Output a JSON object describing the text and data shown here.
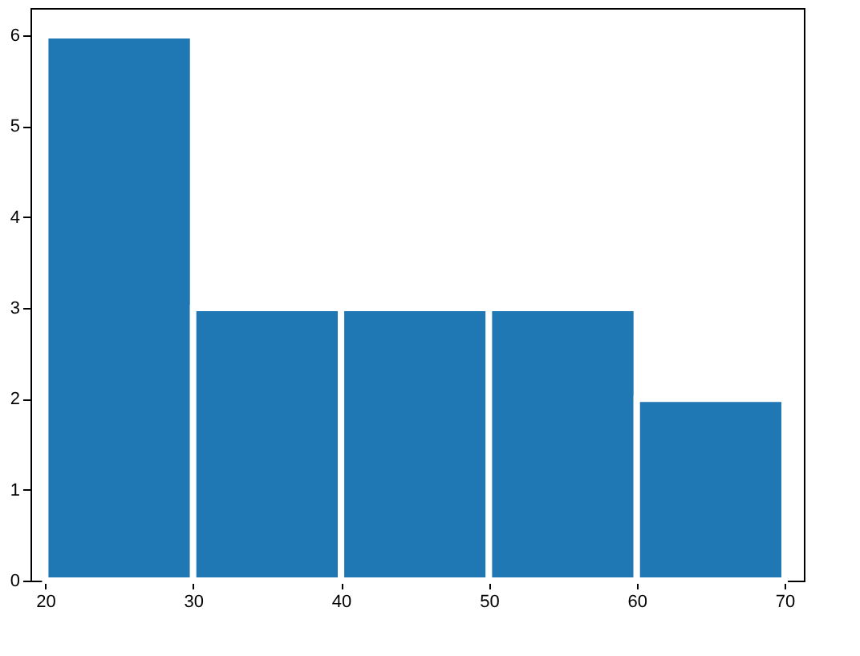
{
  "chart_data": {
    "type": "histogram",
    "bins": [
      20,
      30,
      40,
      50,
      60,
      70
    ],
    "values": [
      6,
      3,
      3,
      3,
      2
    ],
    "color": "#1f77b4",
    "xlim": [
      19,
      71.3
    ],
    "xticks": [
      20,
      30,
      40,
      50,
      60,
      70
    ],
    "ylim": [
      0,
      6.3
    ],
    "yticks": [
      0,
      1,
      2,
      3,
      4,
      5,
      6
    ],
    "grid": false
  }
}
